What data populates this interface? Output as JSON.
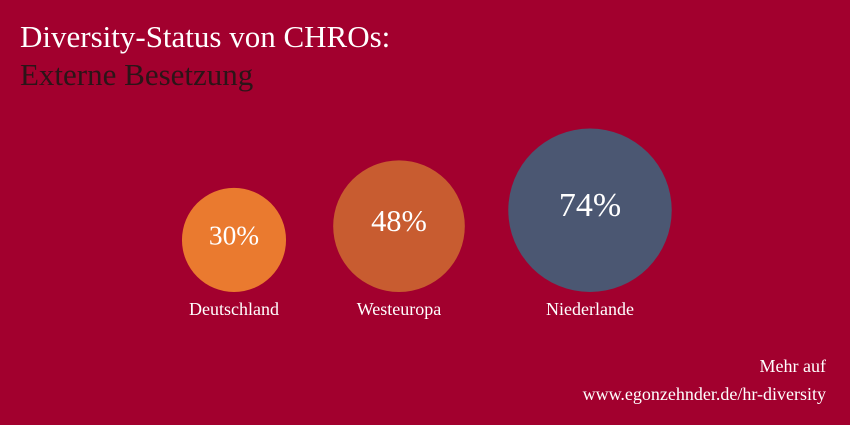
{
  "chart_data": {
    "type": "bubble",
    "title": "Diversity-Status von CHROs:",
    "subtitle": "Externe Besetzung",
    "categories": [
      "Deutschland",
      "Westeuropa",
      "Niederlande"
    ],
    "values": [
      30,
      48,
      74
    ],
    "value_labels": [
      "30%",
      "48%",
      "74%"
    ],
    "colors": [
      "#ea7a2f",
      "#c85c30",
      "#4b5772"
    ],
    "footer": [
      "Mehr auf",
      "www.egonzehnder.de/hr-diversity"
    ]
  }
}
